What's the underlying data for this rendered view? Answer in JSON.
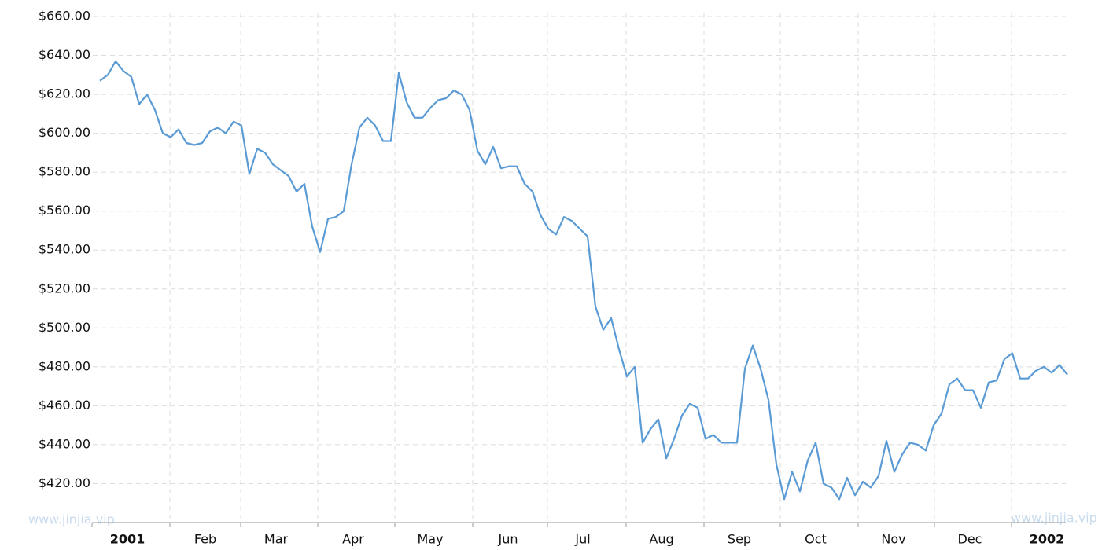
{
  "chart_data": {
    "type": "line",
    "watermarks": [
      "www.jinjia.vip",
      "www.jinjia.vip"
    ],
    "xlim": [
      -1,
      123
    ],
    "xticks": [
      {
        "value": -1,
        "label": "2001"
      },
      {
        "value": 8.9,
        "label": "Feb"
      },
      {
        "value": 17.9,
        "label": "Mar"
      },
      {
        "value": 27.7,
        "label": "Apr"
      },
      {
        "value": 37.5,
        "label": "May"
      },
      {
        "value": 47.4,
        "label": "Jun"
      },
      {
        "value": 56.9,
        "label": "Jul"
      },
      {
        "value": 66.9,
        "label": "Aug"
      },
      {
        "value": 76.8,
        "label": "Sep"
      },
      {
        "value": 86.5,
        "label": "Oct"
      },
      {
        "value": 96.4,
        "label": "Nov"
      },
      {
        "value": 106.1,
        "label": "Dec"
      },
      {
        "value": 115.9,
        "label": "2002"
      }
    ],
    "ylim": [
      400,
      660
    ],
    "yticks": [
      {
        "value": 420,
        "label": "$420.00"
      },
      {
        "value": 440,
        "label": "$440.00"
      },
      {
        "value": 460,
        "label": "$460.00"
      },
      {
        "value": 480,
        "label": "$480.00"
      },
      {
        "value": 500,
        "label": "$500.00"
      },
      {
        "value": 520,
        "label": "$520.00"
      },
      {
        "value": 540,
        "label": "$540.00"
      },
      {
        "value": 560,
        "label": "$560.00"
      },
      {
        "value": 580,
        "label": "$580.00"
      },
      {
        "value": 600,
        "label": "$600.00"
      },
      {
        "value": 620,
        "label": "$620.00"
      },
      {
        "value": 640,
        "label": "$640.00"
      },
      {
        "value": 660,
        "label": "$660.00"
      }
    ],
    "grid": true,
    "color": "#5b9bd5",
    "values": [
      627,
      630,
      637,
      632,
      629,
      615,
      620,
      612,
      600,
      598,
      602,
      595,
      594,
      595,
      601,
      603,
      600,
      606,
      604,
      579,
      592,
      590,
      584,
      581,
      578,
      570,
      574,
      552,
      539,
      556,
      557,
      560,
      584,
      603,
      608,
      604,
      596,
      596,
      631,
      616,
      608,
      608,
      613,
      617,
      618,
      622,
      620,
      612,
      591,
      584,
      593,
      582,
      583,
      583,
      574,
      570,
      558,
      551,
      548,
      557,
      555,
      551,
      547,
      511,
      499,
      505,
      489,
      475,
      480,
      441,
      448,
      453,
      433,
      443,
      455,
      461,
      459,
      443,
      445,
      441,
      441,
      441,
      479,
      491,
      479,
      463,
      430,
      412,
      426,
      416,
      432,
      441,
      420,
      418,
      412,
      423,
      414,
      421,
      418,
      424,
      442,
      426,
      435,
      441,
      440,
      437,
      450,
      456,
      471,
      474,
      468,
      468,
      459,
      472,
      473,
      484,
      487,
      474,
      474,
      478,
      480,
      477,
      481,
      476
    ]
  }
}
